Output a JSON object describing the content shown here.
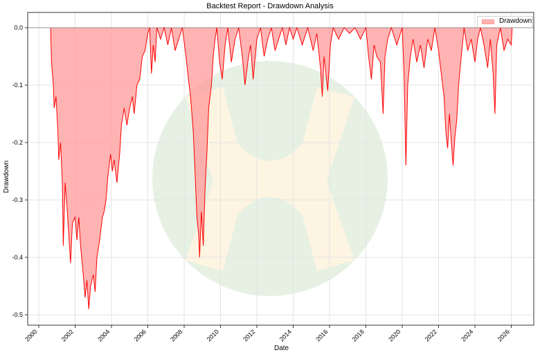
{
  "chart_data": {
    "type": "area",
    "title": "Backtest Report - Drawdown Analysis",
    "xlabel": "Date",
    "ylabel": "Drawdown",
    "x_ticks": [
      "2000",
      "2002",
      "2004",
      "2006",
      "2008",
      "2010",
      "2012",
      "2014",
      "2016",
      "2018",
      "2020",
      "2022",
      "2024",
      "2026"
    ],
    "y_ticks": [
      "0.0",
      "-0.1",
      "-0.2",
      "-0.3",
      "-0.4",
      "-0.5"
    ],
    "y_tick_values": [
      0.0,
      -0.1,
      -0.2,
      -0.3,
      -0.4,
      -0.5
    ],
    "xlim": [
      1999.4,
      2027.3
    ],
    "ylim": [
      -0.516,
      0.027
    ],
    "grid": true,
    "legend": {
      "position": "upper right",
      "entries": [
        "Drawdown"
      ]
    },
    "colors": {
      "line": "#ff0000",
      "fill": "#ffb3b3"
    },
    "series": [
      {
        "name": "Drawdown",
        "points": [
          [
            2000.65,
            0.0
          ],
          [
            2000.7,
            -0.06
          ],
          [
            2000.8,
            -0.1
          ],
          [
            2000.85,
            -0.14
          ],
          [
            2000.95,
            -0.12
          ],
          [
            2001.05,
            -0.18
          ],
          [
            2001.1,
            -0.23
          ],
          [
            2001.2,
            -0.2
          ],
          [
            2001.3,
            -0.27
          ],
          [
            2001.35,
            -0.38
          ],
          [
            2001.45,
            -0.27
          ],
          [
            2001.55,
            -0.31
          ],
          [
            2001.65,
            -0.36
          ],
          [
            2001.75,
            -0.41
          ],
          [
            2001.85,
            -0.34
          ],
          [
            2002.0,
            -0.33
          ],
          [
            2002.1,
            -0.37
          ],
          [
            2002.2,
            -0.33
          ],
          [
            2002.3,
            -0.38
          ],
          [
            2002.45,
            -0.43
          ],
          [
            2002.55,
            -0.47
          ],
          [
            2002.65,
            -0.44
          ],
          [
            2002.75,
            -0.49
          ],
          [
            2002.85,
            -0.45
          ],
          [
            2003.0,
            -0.43
          ],
          [
            2003.1,
            -0.46
          ],
          [
            2003.2,
            -0.4
          ],
          [
            2003.35,
            -0.37
          ],
          [
            2003.5,
            -0.33
          ],
          [
            2003.6,
            -0.32
          ],
          [
            2003.7,
            -0.3
          ],
          [
            2003.8,
            -0.26
          ],
          [
            2003.95,
            -0.22
          ],
          [
            2004.05,
            -0.25
          ],
          [
            2004.15,
            -0.23
          ],
          [
            2004.3,
            -0.27
          ],
          [
            2004.45,
            -0.22
          ],
          [
            2004.55,
            -0.17
          ],
          [
            2004.7,
            -0.14
          ],
          [
            2004.85,
            -0.17
          ],
          [
            2005.0,
            -0.14
          ],
          [
            2005.15,
            -0.12
          ],
          [
            2005.25,
            -0.15
          ],
          [
            2005.4,
            -0.1
          ],
          [
            2005.55,
            -0.09
          ],
          [
            2005.7,
            -0.05
          ],
          [
            2005.85,
            -0.04
          ],
          [
            2006.0,
            -0.01
          ],
          [
            2006.1,
            0.0
          ],
          [
            2006.2,
            -0.08
          ],
          [
            2006.3,
            -0.03
          ],
          [
            2006.4,
            -0.06
          ],
          [
            2006.5,
            0.0
          ],
          [
            2006.7,
            -0.02
          ],
          [
            2006.9,
            0.0
          ],
          [
            2007.1,
            -0.03
          ],
          [
            2007.3,
            0.0
          ],
          [
            2007.5,
            -0.04
          ],
          [
            2007.7,
            -0.02
          ],
          [
            2007.9,
            0.0
          ],
          [
            2008.1,
            -0.05
          ],
          [
            2008.2,
            -0.08
          ],
          [
            2008.35,
            -0.12
          ],
          [
            2008.5,
            -0.18
          ],
          [
            2008.6,
            -0.25
          ],
          [
            2008.7,
            -0.33
          ],
          [
            2008.8,
            -0.36
          ],
          [
            2008.85,
            -0.4
          ],
          [
            2008.95,
            -0.32
          ],
          [
            2009.05,
            -0.38
          ],
          [
            2009.15,
            -0.28
          ],
          [
            2009.25,
            -0.22
          ],
          [
            2009.35,
            -0.14
          ],
          [
            2009.5,
            -0.1
          ],
          [
            2009.6,
            -0.05
          ],
          [
            2009.7,
            -0.02
          ],
          [
            2009.8,
            0.0
          ],
          [
            2009.95,
            -0.06
          ],
          [
            2010.1,
            -0.09
          ],
          [
            2010.25,
            -0.03
          ],
          [
            2010.4,
            0.0
          ],
          [
            2010.6,
            -0.06
          ],
          [
            2010.8,
            -0.02
          ],
          [
            2011.0,
            0.0
          ],
          [
            2011.2,
            -0.05
          ],
          [
            2011.35,
            -0.1
          ],
          [
            2011.5,
            -0.06
          ],
          [
            2011.65,
            -0.03
          ],
          [
            2011.8,
            -0.09
          ],
          [
            2012.0,
            -0.02
          ],
          [
            2012.2,
            0.0
          ],
          [
            2012.4,
            -0.05
          ],
          [
            2012.6,
            -0.02
          ],
          [
            2012.8,
            0.0
          ],
          [
            2013.0,
            -0.04
          ],
          [
            2013.2,
            -0.02
          ],
          [
            2013.4,
            0.0
          ],
          [
            2013.6,
            -0.03
          ],
          [
            2013.8,
            0.0
          ],
          [
            2014.0,
            -0.02
          ],
          [
            2014.2,
            0.0
          ],
          [
            2014.5,
            -0.03
          ],
          [
            2014.8,
            0.0
          ],
          [
            2015.1,
            -0.04
          ],
          [
            2015.3,
            -0.01
          ],
          [
            2015.5,
            -0.07
          ],
          [
            2015.6,
            -0.12
          ],
          [
            2015.7,
            -0.05
          ],
          [
            2015.9,
            -0.11
          ],
          [
            2016.05,
            -0.03
          ],
          [
            2016.2,
            0.0
          ],
          [
            2016.5,
            -0.02
          ],
          [
            2016.8,
            0.0
          ],
          [
            2017.1,
            -0.01
          ],
          [
            2017.4,
            0.0
          ],
          [
            2017.7,
            -0.02
          ],
          [
            2018.0,
            0.0
          ],
          [
            2018.15,
            -0.05
          ],
          [
            2018.3,
            -0.09
          ],
          [
            2018.45,
            -0.03
          ],
          [
            2018.6,
            -0.05
          ],
          [
            2018.8,
            -0.06
          ],
          [
            2018.95,
            -0.15
          ],
          [
            2019.05,
            -0.05
          ],
          [
            2019.2,
            -0.02
          ],
          [
            2019.4,
            0.0
          ],
          [
            2019.7,
            -0.03
          ],
          [
            2020.0,
            0.0
          ],
          [
            2020.1,
            -0.08
          ],
          [
            2020.2,
            -0.24
          ],
          [
            2020.3,
            -0.1
          ],
          [
            2020.45,
            -0.05
          ],
          [
            2020.6,
            -0.02
          ],
          [
            2020.8,
            -0.06
          ],
          [
            2021.0,
            -0.03
          ],
          [
            2021.2,
            -0.07
          ],
          [
            2021.4,
            -0.02
          ],
          [
            2021.6,
            -0.04
          ],
          [
            2021.8,
            0.0
          ],
          [
            2022.0,
            -0.04
          ],
          [
            2022.15,
            -0.08
          ],
          [
            2022.3,
            -0.12
          ],
          [
            2022.4,
            -0.18
          ],
          [
            2022.5,
            -0.21
          ],
          [
            2022.6,
            -0.15
          ],
          [
            2022.7,
            -0.2
          ],
          [
            2022.8,
            -0.24
          ],
          [
            2022.9,
            -0.19
          ],
          [
            2023.0,
            -0.16
          ],
          [
            2023.1,
            -0.1
          ],
          [
            2023.25,
            -0.05
          ],
          [
            2023.4,
            0.0
          ],
          [
            2023.6,
            -0.04
          ],
          [
            2023.8,
            -0.02
          ],
          [
            2024.0,
            -0.06
          ],
          [
            2024.15,
            -0.02
          ],
          [
            2024.3,
            0.0
          ],
          [
            2024.5,
            -0.03
          ],
          [
            2024.7,
            -0.07
          ],
          [
            2024.85,
            -0.02
          ],
          [
            2025.0,
            -0.08
          ],
          [
            2025.1,
            -0.15
          ],
          [
            2025.2,
            -0.03
          ],
          [
            2025.4,
            0.0
          ],
          [
            2025.6,
            -0.04
          ],
          [
            2025.8,
            -0.02
          ],
          [
            2026.0,
            -0.03
          ],
          [
            2026.05,
            0.0
          ]
        ]
      }
    ],
    "watermark": {
      "shape": "circle with X",
      "circle_color": "#e6f1e4",
      "x_color": "#fdf4e1"
    }
  }
}
